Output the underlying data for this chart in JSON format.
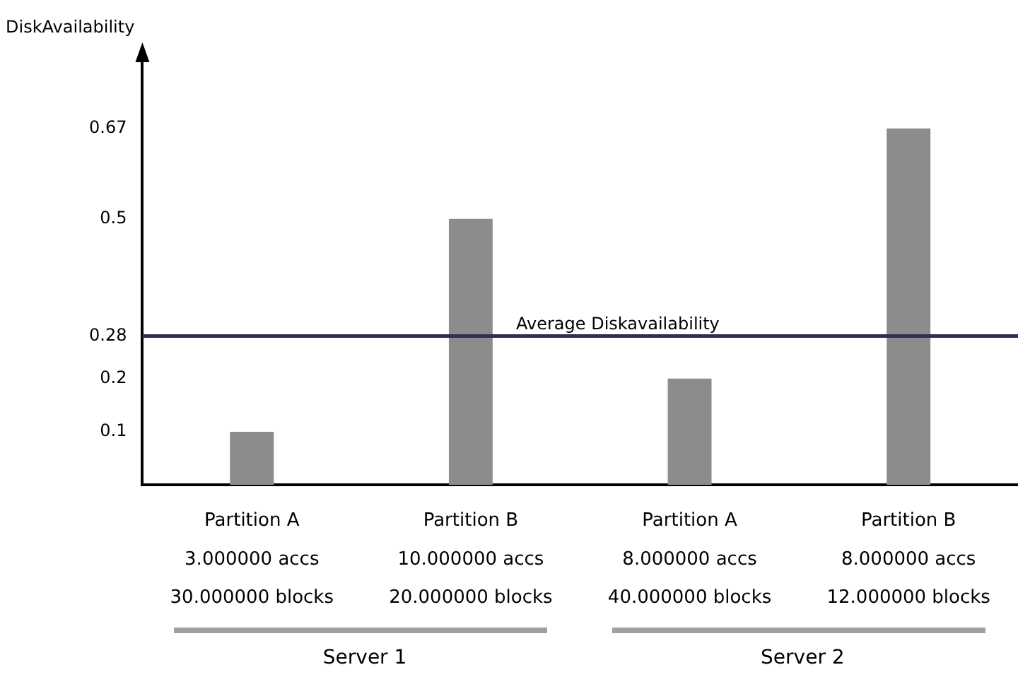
{
  "chart_data": {
    "type": "bar",
    "ylabel": "DiskAvailability",
    "categories": [
      "Partition A\n3.000000 accs\n30.000000 blocks",
      "Partition B\n10.000000 accs\n20.000000 blocks",
      "Partition A\n8.000000 accs\n40.000000 blocks",
      "Partition B\n8.000000 accs\n12.000000 blocks"
    ],
    "values": [
      0.1,
      0.5,
      0.2,
      0.67
    ],
    "color": "#8c8c8c",
    "ylim": [
      0,
      0.8
    ],
    "yticks": [
      0.1,
      0.2,
      0.28,
      0.5,
      0.67
    ],
    "ref_lines": [
      {
        "axis": "y",
        "value": 0.28,
        "label": "Average Diskavailability",
        "color": "#2b3056"
      }
    ],
    "annotations": [
      "Server 1",
      "Server 2"
    ],
    "grid": false,
    "legend": false
  }
}
